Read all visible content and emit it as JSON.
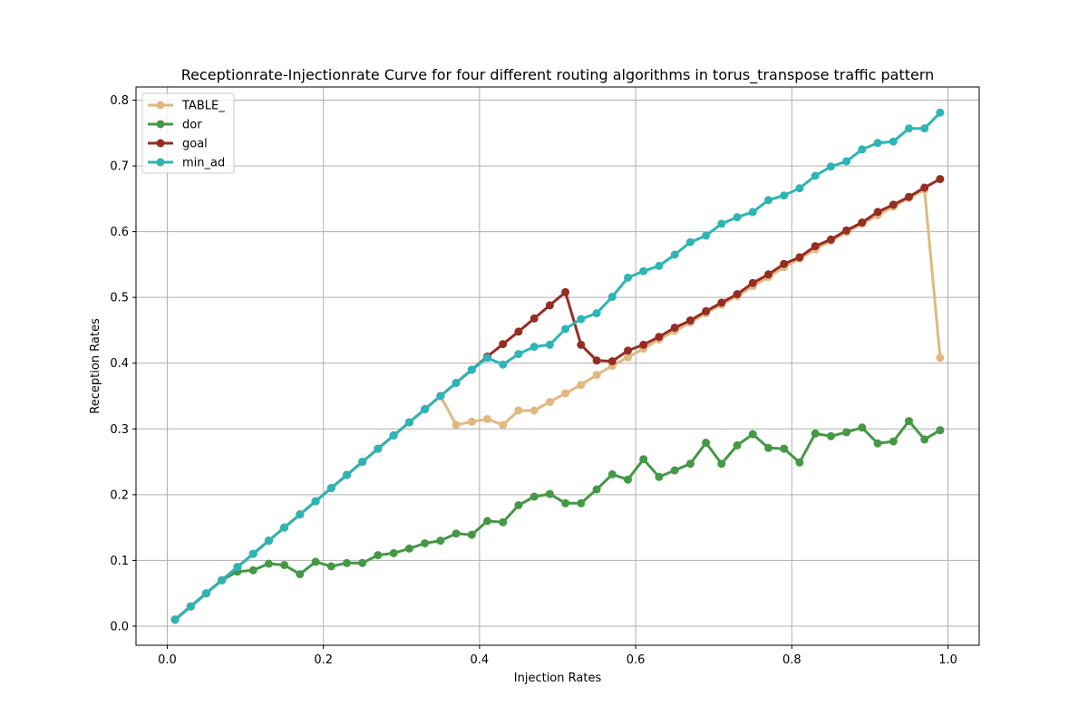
{
  "chart_data": {
    "type": "line",
    "title": "Receptionrate-Injectionrate Curve for four different routing algorithms in torus_transpose traffic pattern",
    "xlabel": "Injection Rates",
    "ylabel": "Reception Rates",
    "xlim": [
      -0.04,
      1.04
    ],
    "ylim": [
      -0.029,
      0.82
    ],
    "x_ticks": [
      "0.0",
      "0.2",
      "0.4",
      "0.6",
      "0.8",
      "1.0"
    ],
    "y_ticks": [
      "0.0",
      "0.1",
      "0.2",
      "0.3",
      "0.4",
      "0.5",
      "0.6",
      "0.7",
      "0.8"
    ],
    "grid": true,
    "legend_position": "top-left",
    "x": [
      0.01,
      0.03,
      0.05,
      0.07,
      0.09,
      0.11,
      0.13,
      0.15,
      0.17,
      0.19,
      0.21,
      0.23,
      0.25,
      0.27,
      0.29,
      0.31,
      0.33,
      0.35,
      0.37,
      0.39,
      0.41,
      0.43,
      0.45,
      0.47,
      0.49,
      0.51,
      0.53,
      0.55,
      0.57,
      0.59,
      0.61,
      0.63,
      0.65,
      0.67,
      0.69,
      0.71,
      0.73,
      0.75,
      0.77,
      0.79,
      0.81,
      0.83,
      0.85,
      0.87,
      0.89,
      0.91,
      0.93,
      0.95,
      0.97,
      0.99
    ],
    "series": [
      {
        "name": "TABLE_",
        "color": "#e0b880",
        "values": [
          0.01,
          0.03,
          0.05,
          0.07,
          0.09,
          0.11,
          0.13,
          0.15,
          0.17,
          0.19,
          0.21,
          0.23,
          0.25,
          0.27,
          0.29,
          0.31,
          0.33,
          0.35,
          0.306,
          0.311,
          0.315,
          0.306,
          0.328,
          0.328,
          0.341,
          0.354,
          0.367,
          0.382,
          0.396,
          0.409,
          0.422,
          0.436,
          0.449,
          0.462,
          0.476,
          0.489,
          0.502,
          0.517,
          0.531,
          0.546,
          0.559,
          0.573,
          0.586,
          0.599,
          0.612,
          0.625,
          0.638,
          0.651,
          0.664,
          0.408
        ]
      },
      {
        "name": "dor",
        "color": "#459845",
        "values": [
          0.01,
          0.03,
          0.05,
          0.07,
          0.083,
          0.085,
          0.095,
          0.093,
          0.079,
          0.098,
          0.091,
          0.096,
          0.096,
          0.108,
          0.111,
          0.118,
          0.126,
          0.13,
          0.141,
          0.139,
          0.16,
          0.158,
          0.184,
          0.197,
          0.201,
          0.187,
          0.187,
          0.208,
          0.231,
          0.223,
          0.254,
          0.227,
          0.237,
          0.247,
          0.279,
          0.247,
          0.275,
          0.292,
          0.271,
          0.27,
          0.249,
          0.293,
          0.289,
          0.295,
          0.302,
          0.278,
          0.281,
          0.312,
          0.284,
          0.298
        ]
      },
      {
        "name": "goal",
        "color": "#962d23",
        "values": [
          0.01,
          0.03,
          0.05,
          0.07,
          0.09,
          0.11,
          0.13,
          0.15,
          0.17,
          0.19,
          0.21,
          0.23,
          0.25,
          0.27,
          0.29,
          0.31,
          0.33,
          0.35,
          0.37,
          0.39,
          0.41,
          0.429,
          0.448,
          0.468,
          0.488,
          0.508,
          0.428,
          0.404,
          0.403,
          0.419,
          0.428,
          0.44,
          0.454,
          0.465,
          0.479,
          0.492,
          0.505,
          0.522,
          0.535,
          0.551,
          0.561,
          0.578,
          0.588,
          0.602,
          0.614,
          0.63,
          0.641,
          0.653,
          0.667,
          0.68
        ]
      },
      {
        "name": "min_ad",
        "color": "#2db5b5",
        "values": [
          0.01,
          0.03,
          0.05,
          0.07,
          0.09,
          0.11,
          0.13,
          0.15,
          0.17,
          0.19,
          0.21,
          0.23,
          0.25,
          0.27,
          0.29,
          0.31,
          0.33,
          0.35,
          0.37,
          0.39,
          0.408,
          0.398,
          0.414,
          0.425,
          0.428,
          0.452,
          0.467,
          0.476,
          0.501,
          0.53,
          0.54,
          0.548,
          0.565,
          0.584,
          0.594,
          0.612,
          0.622,
          0.63,
          0.648,
          0.655,
          0.666,
          0.685,
          0.699,
          0.707,
          0.725,
          0.735,
          0.737,
          0.757,
          0.757,
          0.781
        ]
      }
    ]
  }
}
